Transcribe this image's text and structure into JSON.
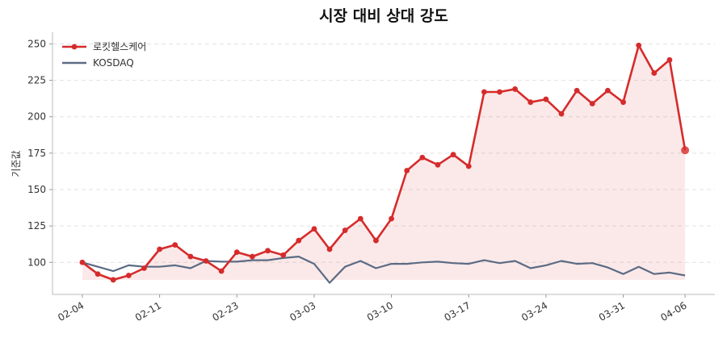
{
  "chart_data": {
    "type": "line",
    "title": "시장 대비 상대 강도",
    "y_label": "기준값",
    "categories": [
      "02-04",
      null,
      null,
      null,
      null,
      "02-11",
      null,
      null,
      null,
      null,
      "02-23",
      null,
      null,
      null,
      null,
      "03-03",
      null,
      null,
      null,
      null,
      "03-10",
      null,
      null,
      null,
      null,
      "03-17",
      null,
      null,
      null,
      null,
      "03-24",
      null,
      null,
      null,
      null,
      "03-31",
      null,
      null,
      null,
      "04-06"
    ],
    "series": [
      {
        "name": "로킷헬스케어",
        "color": "#d62b2b",
        "markers": true,
        "fill": true,
        "values": [
          100,
          92,
          88,
          91,
          96,
          109,
          112,
          104,
          101,
          94,
          107,
          104,
          108,
          105,
          115,
          123,
          109,
          122,
          130,
          115,
          130,
          163,
          172,
          167,
          174,
          166,
          217,
          217,
          219,
          210,
          212,
          202,
          218,
          209,
          218,
          210,
          249,
          230,
          239,
          177
        ]
      },
      {
        "name": "KOSDAQ",
        "color": "#5c6b84",
        "markers": false,
        "fill": false,
        "values": [
          100,
          97,
          94,
          98,
          97,
          97,
          98,
          96,
          101,
          100.5,
          100.5,
          101.5,
          101.5,
          103,
          104,
          99,
          86,
          97,
          101,
          96,
          99,
          99,
          100,
          100.5,
          99.5,
          99,
          101.5,
          99.5,
          101,
          96,
          98,
          101,
          99,
          99.5,
          96.5,
          92,
          97,
          92,
          93,
          91
        ]
      }
    ],
    "ylim": [
      78,
      258
    ],
    "yticks": [
      100,
      125,
      150,
      175,
      200,
      225,
      250
    ],
    "grid": true,
    "legend": "upper-left"
  }
}
